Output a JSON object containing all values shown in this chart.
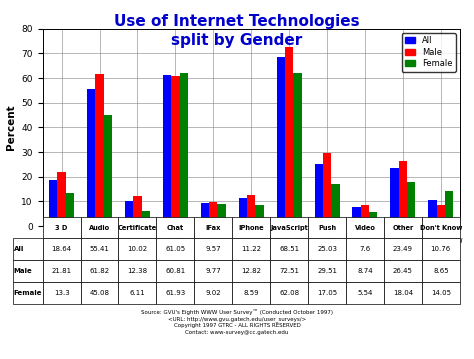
{
  "title": "Use of Internet Technologies\nsplit by Gender",
  "categories": [
    "3 D",
    "Audio",
    "Certificate",
    "Chat",
    "IFax",
    "IPhone",
    "JavaScript",
    "Push",
    "Video",
    "Other",
    "Don't Know"
  ],
  "all": [
    18.64,
    55.41,
    10.02,
    61.05,
    9.57,
    11.22,
    68.51,
    25.03,
    7.6,
    23.49,
    10.76
  ],
  "male": [
    21.81,
    61.82,
    12.38,
    60.81,
    9.77,
    12.82,
    72.51,
    29.51,
    8.74,
    26.45,
    8.65
  ],
  "female": [
    13.3,
    45.08,
    6.11,
    61.93,
    9.02,
    8.59,
    62.08,
    17.05,
    5.54,
    18.04,
    14.05
  ],
  "color_all": "#0000FF",
  "color_male": "#FF0000",
  "color_female": "#008000",
  "ylabel": "Percent",
  "ylim": [
    0,
    80
  ],
  "yticks": [
    0,
    10,
    20,
    30,
    40,
    50,
    60,
    70,
    80
  ],
  "table_all": [
    "18.64",
    "55.41",
    "10.02",
    "61.05",
    "9.57",
    "11.22",
    "68.51",
    "25.03",
    "7.6",
    "23.49",
    "10.76"
  ],
  "table_male": [
    "21.81",
    "61.82",
    "12.38",
    "60.81",
    "9.77",
    "12.82",
    "72.51",
    "29.51",
    "8.74",
    "26.45",
    "8.65"
  ],
  "table_female": [
    "13.3",
    "45.08",
    "6.11",
    "61.93",
    "9.02",
    "8.59",
    "62.08",
    "17.05",
    "5.54",
    "18.04",
    "14.05"
  ],
  "source_line1": "Source: GVU's Eighth WWW User Survey™ (Conducted October 1997)",
  "source_line2": "<URL: http://www.gvu.gatech.edu/user_surveys/>",
  "source_line3": "Copyright 1997 GTRC - ALL RIGHTS RESERVED",
  "source_line4": "Contact: www-survey@cc.gatech.edu",
  "bg_color": "#FFFFFF",
  "title_color": "#0000CD",
  "title_fontsize": 11,
  "bar_width": 0.22
}
